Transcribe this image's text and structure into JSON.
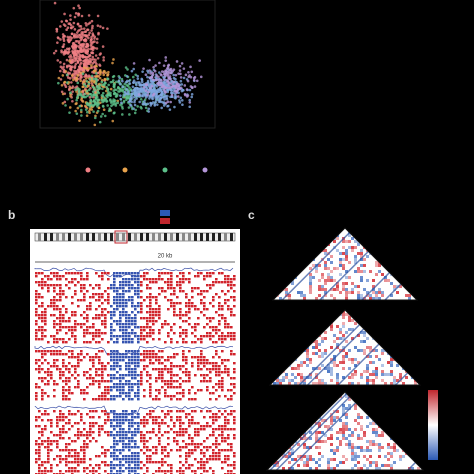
{
  "panels": [
    {
      "label": "b"
    },
    {
      "label": "c"
    }
  ],
  "browser": {
    "scale_label": "20 kb"
  }
}
